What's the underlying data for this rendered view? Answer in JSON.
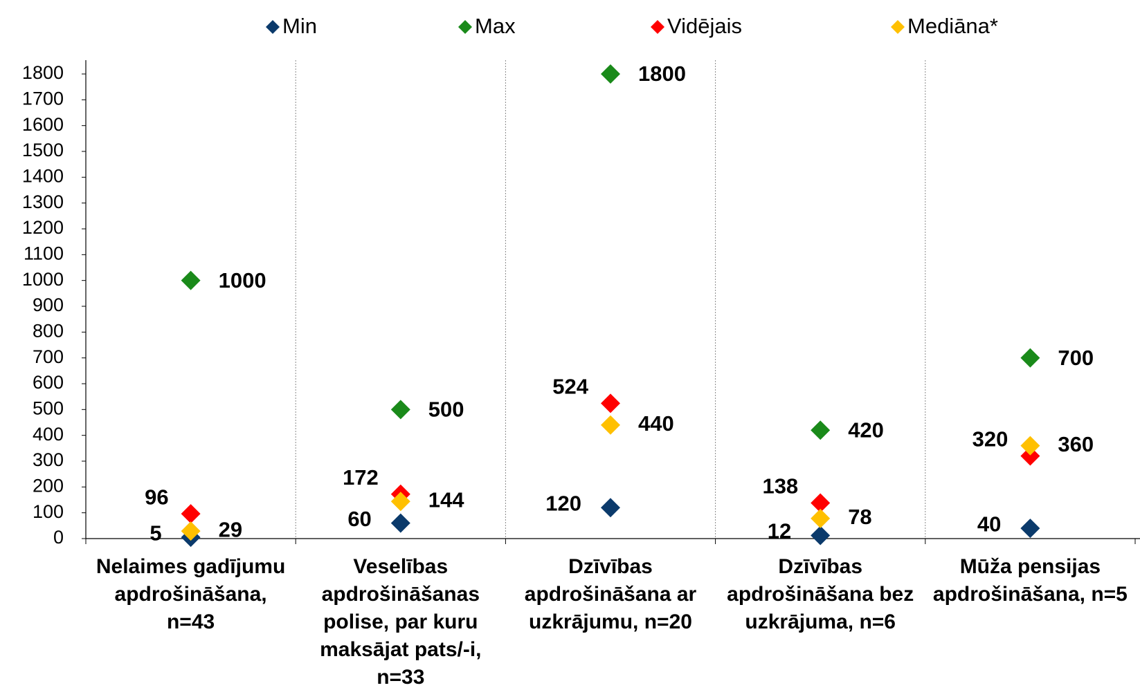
{
  "chart_data": {
    "type": "scatter",
    "categories": [
      "Nelaimes gadījumu apdrošināšana, n=43",
      "Veselības apdrošināšanas polise, par kuru maksājat pats/-i, n=33",
      "Dzīvības apdrošināšana ar uzkrājumu, n=20",
      "Dzīvības apdrošināšana bez uzkrājuma, n=6",
      "Mūža pensijas apdrošināšana, n=5"
    ],
    "series": [
      {
        "name": "Min",
        "color": "#0b3a6b",
        "values": [
          5,
          60,
          120,
          12,
          40
        ]
      },
      {
        "name": "Max",
        "color": "#1a8a1a",
        "values": [
          1000,
          500,
          1800,
          420,
          700
        ]
      },
      {
        "name": "Vidējais",
        "color": "#ff0000",
        "values": [
          96,
          172,
          524,
          138,
          320
        ]
      },
      {
        "name": "Mediāna*",
        "color": "#ffc000",
        "values": [
          29,
          144,
          440,
          78,
          360
        ]
      }
    ],
    "ylim": [
      0,
      1800
    ],
    "yticks": [
      0,
      100,
      200,
      300,
      400,
      500,
      600,
      700,
      800,
      900,
      1000,
      1100,
      1200,
      1300,
      1400,
      1500,
      1600,
      1700,
      1800
    ]
  }
}
